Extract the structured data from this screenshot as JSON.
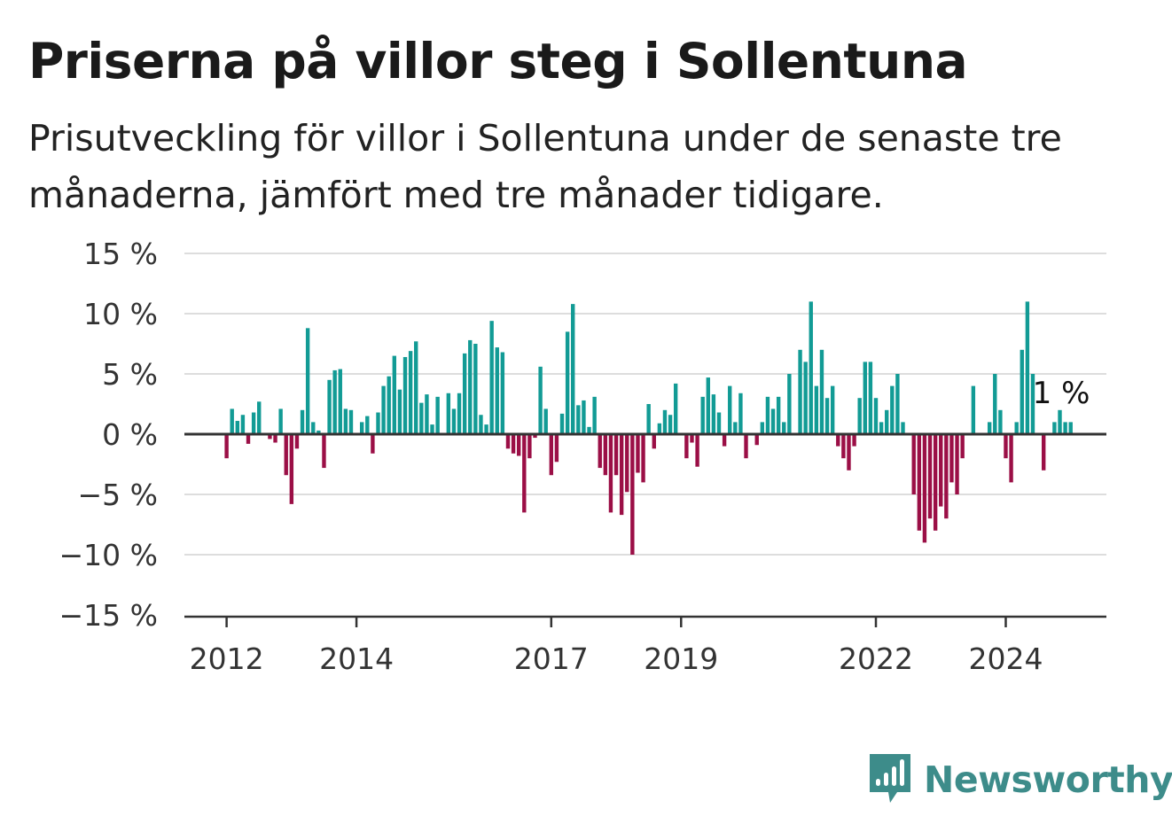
{
  "title": "Priserna på villor steg i Sollentuna",
  "subtitle": "Prisutveckling för villor i Sollentuna under de senaste tre månaderna, jämfört med tre månader tidigare.",
  "brand": {
    "name": "Newsworthy",
    "icon": "bar-chart-speech-bubble-icon",
    "color": "#3d8c8a"
  },
  "colors": {
    "positive": "#129b95",
    "negative": "#9b0f46",
    "grid": "#dddddd",
    "axis": "#333333"
  },
  "annotation": {
    "text": "1 %"
  },
  "chart_data": {
    "type": "bar",
    "title": "Priserna på villor steg i Sollentuna",
    "xlabel": "",
    "ylabel": "",
    "ylim": [
      -15,
      15
    ],
    "yticks": [
      15,
      10,
      5,
      0,
      -5,
      -10,
      -15
    ],
    "ytick_labels": [
      "15 %",
      "10 %",
      "5 %",
      "0 %",
      "−5 %",
      "−10 %",
      "−15 %"
    ],
    "xlim": [
      2011.35,
      2025.55
    ],
    "xticks": [
      2012,
      2014,
      2017,
      2019,
      2022,
      2024
    ],
    "xtick_labels": [
      "2012",
      "2014",
      "2017",
      "2019",
      "2022",
      "2024"
    ],
    "grid": true,
    "start": "2012-01",
    "frequency": "monthly",
    "values": [
      -2.0,
      2.1,
      1.1,
      1.6,
      -0.8,
      1.8,
      2.7,
      0.0,
      -0.4,
      -0.7,
      2.1,
      -3.4,
      -5.8,
      -1.2,
      2.0,
      8.8,
      1.0,
      0.3,
      -2.8,
      4.5,
      5.3,
      5.4,
      2.1,
      2.0,
      0.0,
      1.0,
      1.5,
      -1.6,
      1.8,
      4.0,
      4.8,
      6.5,
      3.7,
      6.4,
      6.9,
      7.7,
      2.6,
      3.3,
      0.8,
      3.1,
      0.0,
      3.4,
      2.1,
      3.4,
      6.7,
      7.8,
      7.5,
      1.6,
      0.8,
      9.4,
      7.2,
      6.8,
      -1.2,
      -1.6,
      -1.8,
      -6.5,
      -2.0,
      -0.3,
      5.6,
      2.1,
      -3.4,
      -2.3,
      1.7,
      8.5,
      10.8,
      2.4,
      2.8,
      0.6,
      3.1,
      -2.8,
      -3.4,
      -6.5,
      -3.4,
      -6.7,
      -4.8,
      -10.0,
      -3.2,
      -4.0,
      2.5,
      -1.2,
      0.9,
      2.0,
      1.6,
      4.2,
      0.0,
      -2.0,
      -0.7,
      -2.7,
      3.1,
      4.7,
      3.3,
      1.8,
      -1.0,
      4.0,
      1.0,
      3.4,
      -2.0,
      0.0,
      -0.9,
      1.0,
      3.1,
      2.1,
      3.1,
      1.0,
      5.0,
      0.0,
      7.0,
      6.0,
      11.0,
      4.0,
      7.0,
      3.0,
      4.0,
      -1.0,
      -2.0,
      -3.0,
      -1.0,
      3.0,
      6.0,
      6.0,
      3.0,
      1.0,
      2.0,
      4.0,
      5.0,
      1.0,
      0.0,
      -5.0,
      -8.0,
      -9.0,
      -7.0,
      -8.0,
      -6.0,
      -7.0,
      -4.0,
      -5.0,
      -2.0,
      0.0,
      4.0,
      0.0,
      0.0,
      1.0,
      5.0,
      2.0,
      -2.0,
      -4.0,
      1.0,
      7.0,
      11.0,
      5.0,
      0.0,
      -3.0,
      0.0,
      1.0,
      2.0,
      1.0,
      1.0
    ]
  }
}
